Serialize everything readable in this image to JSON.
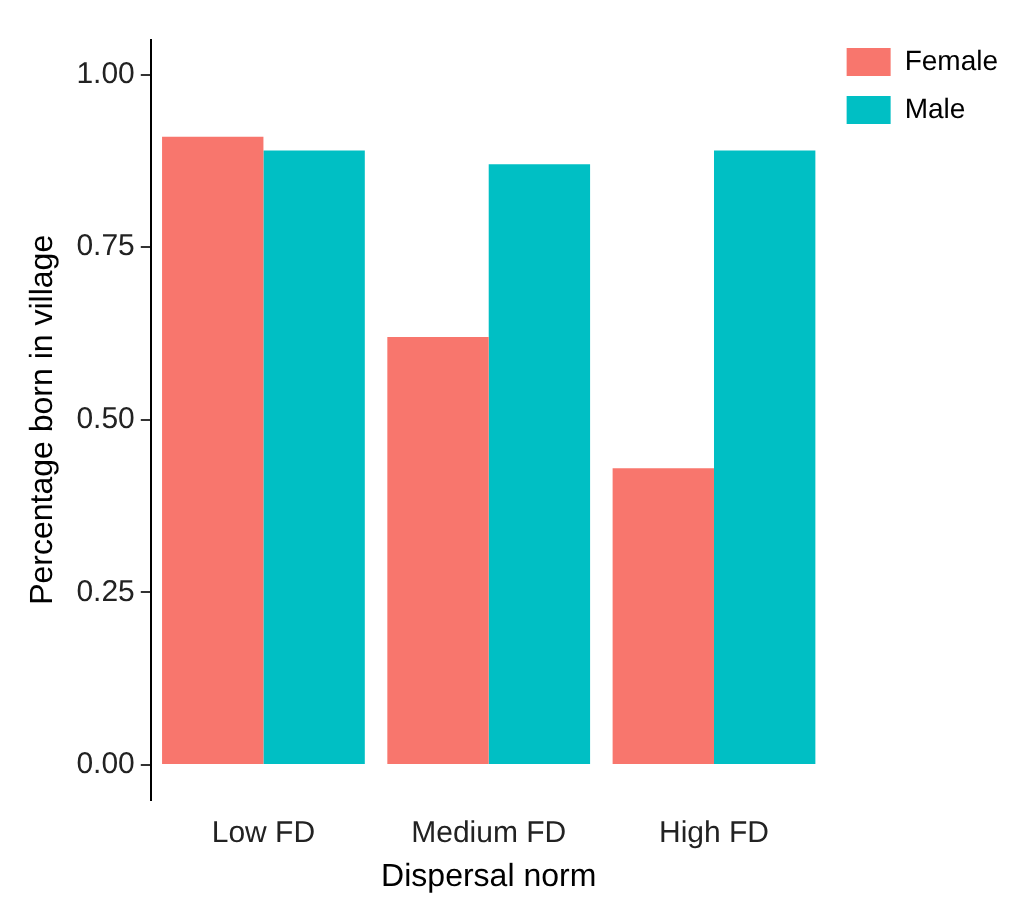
{
  "chart_data": {
    "type": "bar",
    "xlabel": "Dispersal norm",
    "ylabel": "Percentage born in village",
    "categories": [
      "Low FD",
      "Medium FD",
      "High FD"
    ],
    "series": [
      {
        "name": "Female",
        "color": "#f8766d",
        "values": [
          0.91,
          0.62,
          0.43
        ]
      },
      {
        "name": "Male",
        "color": "#00bfc4",
        "values": [
          0.89,
          0.87,
          0.89
        ]
      }
    ],
    "ylim": [
      -0.05,
      1.05
    ],
    "yticks": [
      {
        "value": 0,
        "label": "0.00"
      },
      0.25,
      {
        "value": 0.5,
        "label": "0.50"
      },
      0.75,
      {
        "value": 1,
        "label": "1.00"
      }
    ],
    "grid": false,
    "legend": "top right"
  }
}
